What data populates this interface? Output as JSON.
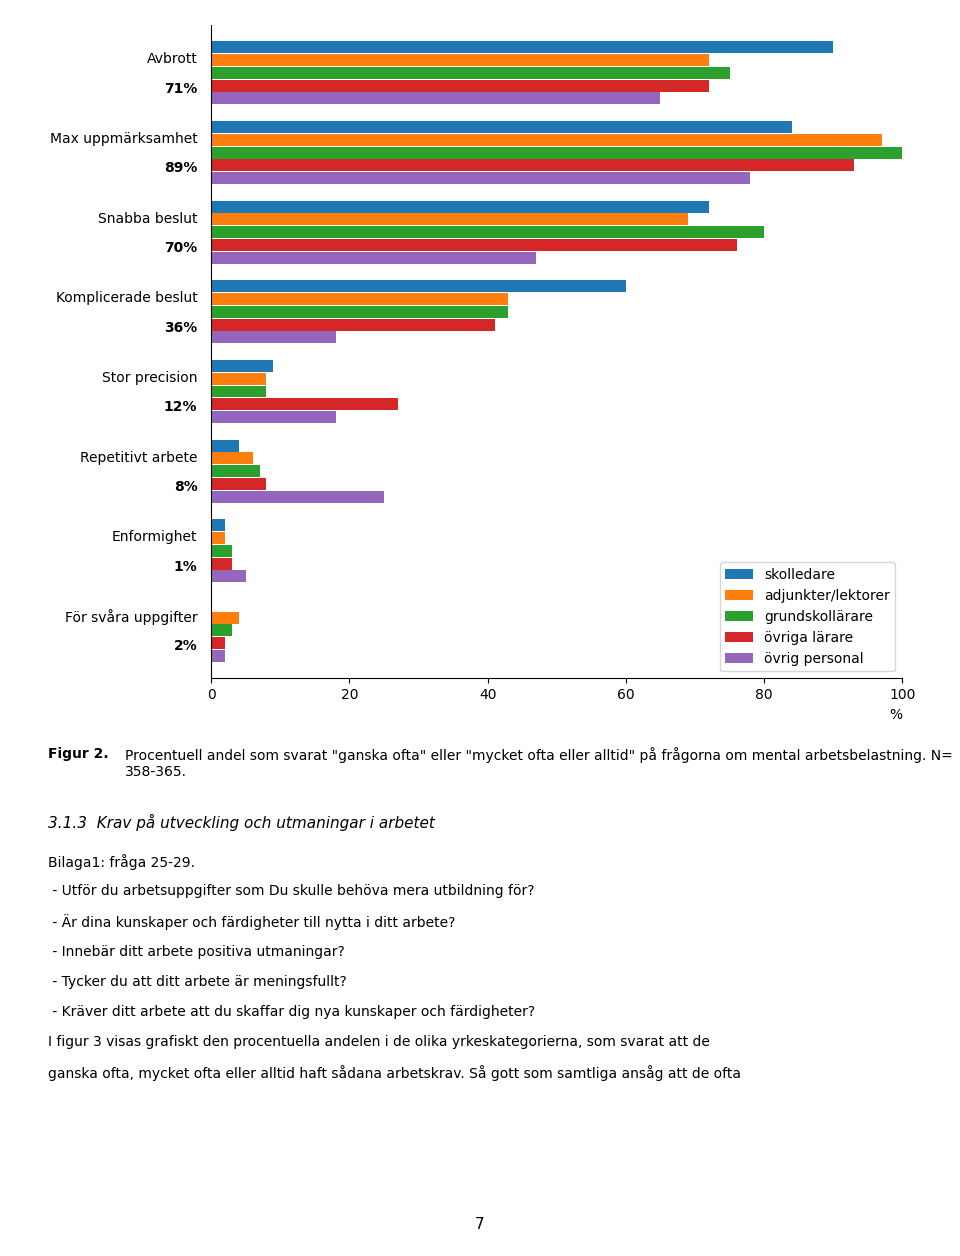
{
  "chart_data": {
    "type": "bar",
    "orientation": "horizontal",
    "categories": [
      "Avbrott",
      "Max uppmärksamhet",
      "Snabba beslut",
      "Komplicerade beslut",
      "Stor precision",
      "Repetitivt arbete",
      "Enformighet",
      "För svåra uppgifter"
    ],
    "series": [
      {
        "name": "skolledare",
        "values": [
          90,
          84,
          72,
          60,
          9,
          4,
          2,
          0
        ]
      },
      {
        "name": "adjunkter/lektorer",
        "values": [
          72,
          97,
          69,
          43,
          8,
          6,
          2,
          4
        ]
      },
      {
        "name": "grundskollärare",
        "values": [
          75,
          100,
          80,
          43,
          8,
          7,
          3,
          3
        ]
      },
      {
        "name": "övriga lärare",
        "values": [
          72,
          93,
          76,
          41,
          27,
          8,
          3,
          2
        ]
      },
      {
        "name": "övrig personal",
        "values": [
          65,
          78,
          47,
          18,
          18,
          25,
          5,
          2
        ]
      }
    ],
    "xlim": [
      0,
      100
    ],
    "xticks": [
      0,
      20,
      40,
      60,
      80,
      100
    ],
    "xlabel": "%",
    "legend": "lower right",
    "annotations": [
      {
        "text": "71%",
        "category": "Avbrott"
      },
      {
        "text": "89%",
        "category": "Max uppmärksamhet"
      },
      {
        "text": "70%",
        "category": "Snabba beslut"
      },
      {
        "text": "36%",
        "category": "Komplicerade beslut"
      },
      {
        "text": "12%",
        "category": "Stor precision"
      },
      {
        "text": "8%",
        "category": "Repetitivt arbete"
      },
      {
        "text": "1%",
        "category": "Enformighet"
      },
      {
        "text": "2%",
        "category": "För svåra uppgifter"
      },
      {
        "text": "Figur 2."
      },
      {
        "text": "Procentuell andel som svarat \"ganska ofta\" eller \"mycket ofta eller alltid\" på frågorna om mental arbetsbelastning. N= 358-365."
      },
      {
        "text": "3.1.3  Krav på utveckling och utmaningar i arbetet"
      },
      {
        "text": "Bilaga1: fråga 25-29."
      },
      {
        "text": " - Utför du arbetsuppgifter som Du skulle behöva mera utbildning för?"
      },
      {
        "text": " - Är dina kunskaper och färdigheter till nytta i ditt arbete?"
      },
      {
        "text": " - Innebär ditt arbete positiva utmaningar?"
      },
      {
        "text": " - Tycker du att ditt arbete är meningsfullt?"
      },
      {
        "text": " - Kräver ditt arbete att du skaffar dig nya kunskaper och färdigheter?"
      },
      {
        "text": "I figur 3 visas grafiskt den procentuella andelen i de olika yrkeskategorierna, som svarat att de"
      },
      {
        "text": "ganska ofta, mycket ofta eller alltid haft sådana arbetskrav. Så gott som samtliga ansåg att de ofta"
      },
      {
        "text": "7"
      }
    ]
  }
}
